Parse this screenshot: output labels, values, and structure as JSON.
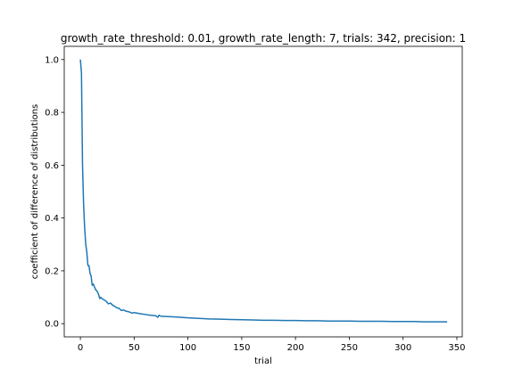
{
  "chart_data": {
    "type": "line",
    "title": "growth_rate_threshold: 0.01, growth_rate_length: 7, trials: 342, precision: 1",
    "xlabel": "trial",
    "ylabel": "coefficient of difference of distributions",
    "xlim": [
      -15,
      355
    ],
    "ylim": [
      -0.05,
      1.05
    ],
    "xticks": [
      0,
      50,
      100,
      150,
      200,
      250,
      300,
      350
    ],
    "yticks": [
      0.0,
      0.2,
      0.4,
      0.6,
      0.8,
      1.0
    ],
    "xtick_labels": [
      "0",
      "50",
      "100",
      "150",
      "200",
      "250",
      "300",
      "350"
    ],
    "ytick_labels": [
      "0.0",
      "0.2",
      "0.4",
      "0.6",
      "0.8",
      "1.0"
    ],
    "grid": false,
    "line_color": "#1f77b4",
    "series": [
      {
        "x": [
          0,
          1,
          2,
          3,
          4,
          5,
          6,
          7,
          8,
          9,
          10,
          11,
          12,
          13,
          14,
          15,
          16,
          17,
          18,
          19,
          20,
          22,
          24,
          26,
          28,
          30,
          32,
          34,
          36,
          38,
          40,
          42,
          45,
          48,
          50,
          55,
          60,
          65,
          70,
          72,
          73,
          75,
          80,
          90,
          100,
          110,
          120,
          130,
          140,
          150,
          160,
          170,
          180,
          190,
          200,
          210,
          220,
          230,
          240,
          250,
          260,
          270,
          280,
          290,
          300,
          310,
          320,
          330,
          341
        ],
        "y": [
          1.0,
          0.95,
          0.6,
          0.45,
          0.36,
          0.3,
          0.27,
          0.22,
          0.22,
          0.19,
          0.18,
          0.145,
          0.15,
          0.14,
          0.13,
          0.125,
          0.12,
          0.11,
          0.095,
          0.1,
          0.095,
          0.09,
          0.085,
          0.075,
          0.078,
          0.07,
          0.065,
          0.06,
          0.058,
          0.05,
          0.052,
          0.048,
          0.045,
          0.04,
          0.042,
          0.038,
          0.035,
          0.032,
          0.03,
          0.024,
          0.032,
          0.028,
          0.027,
          0.025,
          0.022,
          0.02,
          0.018,
          0.017,
          0.016,
          0.015,
          0.014,
          0.013,
          0.013,
          0.012,
          0.012,
          0.011,
          0.011,
          0.01,
          0.01,
          0.01,
          0.009,
          0.009,
          0.009,
          0.008,
          0.008,
          0.008,
          0.007,
          0.007,
          0.007
        ]
      }
    ]
  }
}
